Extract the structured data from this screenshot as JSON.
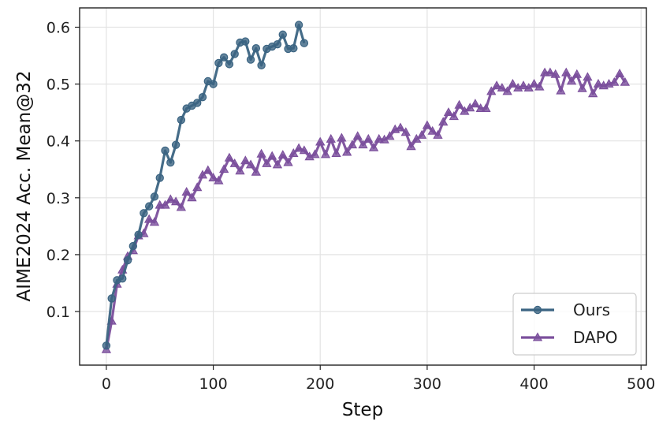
{
  "chart_data": {
    "type": "line",
    "title": "",
    "xlabel": "Step",
    "ylabel": "AIME2024 Acc. Mean@32",
    "xlim": [
      -25,
      505
    ],
    "ylim": [
      0.0057,
      0.634
    ],
    "xticks": [
      0,
      100,
      200,
      300,
      400,
      500
    ],
    "yticks": [
      0.1,
      0.2,
      0.3,
      0.4,
      0.5,
      0.6
    ],
    "grid": true,
    "legend_position": "bottom-right",
    "series": [
      {
        "name": "Ours",
        "color": "#3b6482",
        "marker": "circle",
        "x": [
          0,
          5,
          10,
          15,
          20,
          25,
          30,
          35,
          40,
          45,
          50,
          55,
          60,
          65,
          70,
          75,
          80,
          85,
          90,
          95,
          100,
          105,
          110,
          115,
          120,
          125,
          130,
          135,
          140,
          145,
          150,
          155,
          160,
          165,
          170,
          175,
          180,
          185
        ],
        "y": [
          0.04,
          0.123,
          0.155,
          0.158,
          0.19,
          0.215,
          0.235,
          0.273,
          0.285,
          0.302,
          0.335,
          0.383,
          0.362,
          0.393,
          0.437,
          0.457,
          0.462,
          0.467,
          0.477,
          0.505,
          0.5,
          0.537,
          0.547,
          0.535,
          0.553,
          0.573,
          0.575,
          0.543,
          0.563,
          0.533,
          0.562,
          0.566,
          0.57,
          0.587,
          0.562,
          0.563,
          0.604,
          0.572
        ]
      },
      {
        "name": "DAPO",
        "color": "#7b4f9c",
        "marker": "triangle",
        "x": [
          0,
          5,
          10,
          15,
          20,
          25,
          30,
          35,
          40,
          45,
          50,
          55,
          60,
          65,
          70,
          75,
          80,
          85,
          90,
          95,
          100,
          105,
          110,
          115,
          120,
          125,
          130,
          135,
          140,
          145,
          150,
          155,
          160,
          165,
          170,
          175,
          180,
          185,
          190,
          195,
          200,
          205,
          210,
          215,
          220,
          225,
          230,
          235,
          240,
          245,
          250,
          255,
          260,
          265,
          270,
          275,
          280,
          285,
          290,
          295,
          300,
          305,
          310,
          315,
          320,
          325,
          330,
          335,
          340,
          345,
          350,
          355,
          360,
          365,
          370,
          375,
          380,
          385,
          390,
          395,
          400,
          405,
          410,
          415,
          420,
          425,
          430,
          435,
          440,
          445,
          450,
          455,
          460,
          465,
          470,
          475,
          480,
          485
        ],
        "y": [
          0.033,
          0.083,
          0.148,
          0.173,
          0.197,
          0.207,
          0.233,
          0.237,
          0.262,
          0.257,
          0.287,
          0.287,
          0.297,
          0.293,
          0.283,
          0.31,
          0.3,
          0.318,
          0.34,
          0.348,
          0.335,
          0.33,
          0.35,
          0.37,
          0.36,
          0.347,
          0.365,
          0.358,
          0.345,
          0.377,
          0.36,
          0.373,
          0.358,
          0.375,
          0.362,
          0.378,
          0.387,
          0.383,
          0.372,
          0.376,
          0.398,
          0.376,
          0.403,
          0.378,
          0.405,
          0.38,
          0.393,
          0.408,
          0.393,
          0.403,
          0.388,
          0.403,
          0.402,
          0.408,
          0.42,
          0.423,
          0.415,
          0.39,
          0.403,
          0.41,
          0.427,
          0.417,
          0.41,
          0.433,
          0.45,
          0.443,
          0.463,
          0.452,
          0.458,
          0.465,
          0.457,
          0.457,
          0.487,
          0.497,
          0.493,
          0.487,
          0.5,
          0.493,
          0.497,
          0.493,
          0.5,
          0.495,
          0.52,
          0.52,
          0.517,
          0.488,
          0.52,
          0.505,
          0.517,
          0.492,
          0.512,
          0.483,
          0.5,
          0.497,
          0.5,
          0.503,
          0.518,
          0.503
        ]
      }
    ]
  }
}
